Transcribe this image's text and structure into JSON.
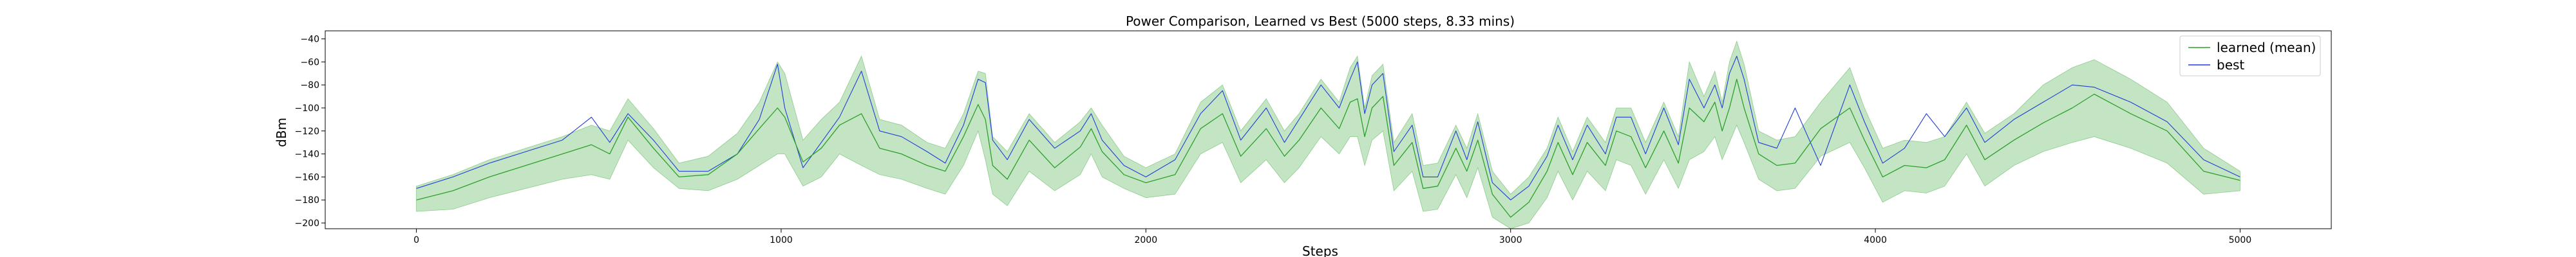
{
  "chart_data": {
    "type": "line",
    "title": "Power Comparison, Learned vs Best (5000 steps, 8.33 mins)",
    "xlabel": "Steps",
    "ylabel": "dBm",
    "xlim": [
      -250,
      5250
    ],
    "ylim": [
      -205,
      -33
    ],
    "x_ticks": [
      0,
      1000,
      2000,
      3000,
      4000,
      5000
    ],
    "x_tick_labels": [
      "0",
      "1000",
      "2000",
      "3000",
      "4000",
      "5000"
    ],
    "y_ticks": [
      -40,
      -60,
      -80,
      -100,
      -120,
      -140,
      -160,
      -180,
      -200
    ],
    "y_tick_labels": [
      "−40",
      "−60",
      "−80",
      "−100",
      "−120",
      "−140",
      "−160",
      "−180",
      "−200"
    ],
    "grid": false,
    "legend_position": "top-right",
    "x": [
      0,
      100,
      200,
      300,
      400,
      480,
      530,
      580,
      650,
      720,
      800,
      880,
      940,
      990,
      1010,
      1060,
      1110,
      1160,
      1220,
      1270,
      1330,
      1400,
      1450,
      1500,
      1540,
      1560,
      1580,
      1620,
      1680,
      1750,
      1820,
      1850,
      1880,
      1940,
      2000,
      2080,
      2150,
      2210,
      2260,
      2330,
      2380,
      2420,
      2480,
      2530,
      2560,
      2580,
      2600,
      2620,
      2650,
      2680,
      2730,
      2760,
      2800,
      2850,
      2880,
      2910,
      2950,
      3000,
      3050,
      3100,
      3130,
      3170,
      3210,
      3260,
      3290,
      3330,
      3370,
      3420,
      3460,
      3490,
      3530,
      3560,
      3580,
      3600,
      3620,
      3640,
      3680,
      3730,
      3780,
      3850,
      3930,
      3970,
      4020,
      4080,
      4140,
      4190,
      4250,
      4300,
      4380,
      4460,
      4540,
      4600,
      4700,
      4800,
      4900,
      5000
    ],
    "series": [
      {
        "name": "learned (mean)",
        "color": "#2ca02c",
        "values": [
          -180,
          -172,
          -160,
          -150,
          -140,
          -132,
          -140,
          -108,
          -135,
          -160,
          -158,
          -140,
          -118,
          -100,
          -108,
          -147,
          -135,
          -115,
          -105,
          -135,
          -140,
          -150,
          -155,
          -125,
          -97,
          -110,
          -150,
          -162,
          -128,
          -152,
          -134,
          -118,
          -138,
          -158,
          -165,
          -158,
          -118,
          -105,
          -142,
          -118,
          -142,
          -128,
          -100,
          -118,
          -95,
          -92,
          -125,
          -100,
          -90,
          -150,
          -130,
          -170,
          -168,
          -135,
          -155,
          -128,
          -175,
          -195,
          -182,
          -155,
          -130,
          -158,
          -130,
          -150,
          -120,
          -125,
          -152,
          -120,
          -148,
          -100,
          -112,
          -95,
          -120,
          -100,
          -75,
          -100,
          -140,
          -150,
          -148,
          -118,
          -100,
          -128,
          -160,
          -150,
          -152,
          -145,
          -115,
          -145,
          -128,
          -113,
          -100,
          -88,
          -105,
          -120,
          -155,
          -163
        ],
        "band_upper": [
          -168,
          -158,
          -145,
          -135,
          -125,
          -115,
          -120,
          -92,
          -118,
          -148,
          -142,
          -122,
          -95,
          -60,
          -70,
          -128,
          -110,
          -95,
          -55,
          -110,
          -115,
          -130,
          -135,
          -105,
          -68,
          -70,
          -125,
          -138,
          -105,
          -130,
          -112,
          -100,
          -115,
          -142,
          -152,
          -140,
          -95,
          -80,
          -120,
          -92,
          -120,
          -105,
          -75,
          -95,
          -65,
          -55,
          -100,
          -72,
          -62,
          -130,
          -105,
          -150,
          -148,
          -115,
          -135,
          -105,
          -155,
          -175,
          -160,
          -135,
          -108,
          -138,
          -108,
          -130,
          -100,
          -100,
          -130,
          -95,
          -125,
          -60,
          -90,
          -68,
          -95,
          -60,
          -42,
          -62,
          -120,
          -128,
          -125,
          -95,
          -65,
          -100,
          -135,
          -128,
          -130,
          -125,
          -95,
          -122,
          -105,
          -80,
          -65,
          -58,
          -75,
          -95,
          -135,
          -155
        ],
        "band_lower": [
          -190,
          -188,
          -178,
          -170,
          -162,
          -158,
          -162,
          -128,
          -152,
          -170,
          -172,
          -162,
          -150,
          -140,
          -140,
          -168,
          -160,
          -140,
          -150,
          -158,
          -162,
          -170,
          -175,
          -150,
          -120,
          -145,
          -175,
          -185,
          -155,
          -172,
          -158,
          -140,
          -160,
          -170,
          -178,
          -175,
          -140,
          -130,
          -165,
          -145,
          -165,
          -152,
          -125,
          -140,
          -125,
          -125,
          -150,
          -128,
          -120,
          -172,
          -155,
          -190,
          -188,
          -158,
          -178,
          -152,
          -195,
          -205,
          -200,
          -178,
          -155,
          -180,
          -155,
          -172,
          -145,
          -150,
          -175,
          -145,
          -170,
          -145,
          -138,
          -125,
          -145,
          -130,
          -115,
          -130,
          -162,
          -172,
          -170,
          -142,
          -130,
          -152,
          -182,
          -172,
          -174,
          -168,
          -140,
          -168,
          -150,
          -138,
          -130,
          -125,
          -135,
          -148,
          -175,
          -172
        ]
      },
      {
        "name": "best",
        "color": "#1f3fd6",
        "values": [
          -170,
          -160,
          -148,
          -138,
          -128,
          -108,
          -130,
          -105,
          -128,
          -155,
          -155,
          -140,
          -110,
          -62,
          -100,
          -152,
          -130,
          -108,
          -68,
          -120,
          -125,
          -138,
          -148,
          -115,
          -75,
          -78,
          -128,
          -145,
          -110,
          -135,
          -120,
          -105,
          -128,
          -150,
          -160,
          -145,
          -105,
          -85,
          -128,
          -100,
          -130,
          -110,
          -80,
          -100,
          -75,
          -60,
          -105,
          -80,
          -70,
          -138,
          -115,
          -160,
          -160,
          -120,
          -145,
          -112,
          -165,
          -180,
          -168,
          -142,
          -115,
          -145,
          -115,
          -140,
          -108,
          -108,
          -140,
          -100,
          -132,
          -75,
          -100,
          -80,
          -100,
          -70,
          -55,
          -75,
          -130,
          -135,
          -100,
          -150,
          -80,
          -112,
          -148,
          -135,
          -105,
          -125,
          -100,
          -130,
          -110,
          -95,
          -80,
          -82,
          -95,
          -112,
          -145,
          -160
        ]
      }
    ]
  }
}
